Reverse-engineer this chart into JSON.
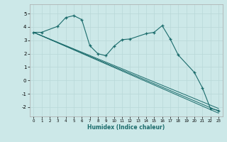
{
  "xlabel": "Humidex (Indice chaleur)",
  "background_color": "#cce8e8",
  "grid_color": "#d0e8e8",
  "line_color": "#1a6b6b",
  "xlim": [
    -0.5,
    23.5
  ],
  "ylim": [
    -2.7,
    5.7
  ],
  "yticks": [
    -2,
    -1,
    0,
    1,
    2,
    3,
    4,
    5
  ],
  "xticks": [
    0,
    1,
    2,
    3,
    4,
    5,
    6,
    7,
    8,
    9,
    10,
    11,
    12,
    13,
    14,
    15,
    16,
    17,
    18,
    19,
    20,
    21,
    22,
    23
  ],
  "main_series": {
    "x": [
      0,
      1,
      3,
      4,
      5,
      6,
      7,
      8,
      9,
      10,
      11,
      12,
      14,
      15,
      16,
      17,
      18,
      20,
      21,
      22,
      23
    ],
    "y": [
      3.6,
      3.6,
      4.05,
      4.7,
      4.85,
      4.55,
      2.6,
      2.0,
      1.85,
      2.55,
      3.05,
      3.1,
      3.5,
      3.6,
      4.1,
      3.1,
      1.9,
      0.6,
      -0.55,
      -2.1,
      -2.25
    ]
  },
  "regression_lines": [
    {
      "x": [
        0,
        23
      ],
      "y": [
        3.6,
        -2.1
      ]
    },
    {
      "x": [
        0,
        23
      ],
      "y": [
        3.6,
        -2.3
      ]
    },
    {
      "x": [
        0,
        23
      ],
      "y": [
        3.6,
        -2.45
      ]
    }
  ]
}
